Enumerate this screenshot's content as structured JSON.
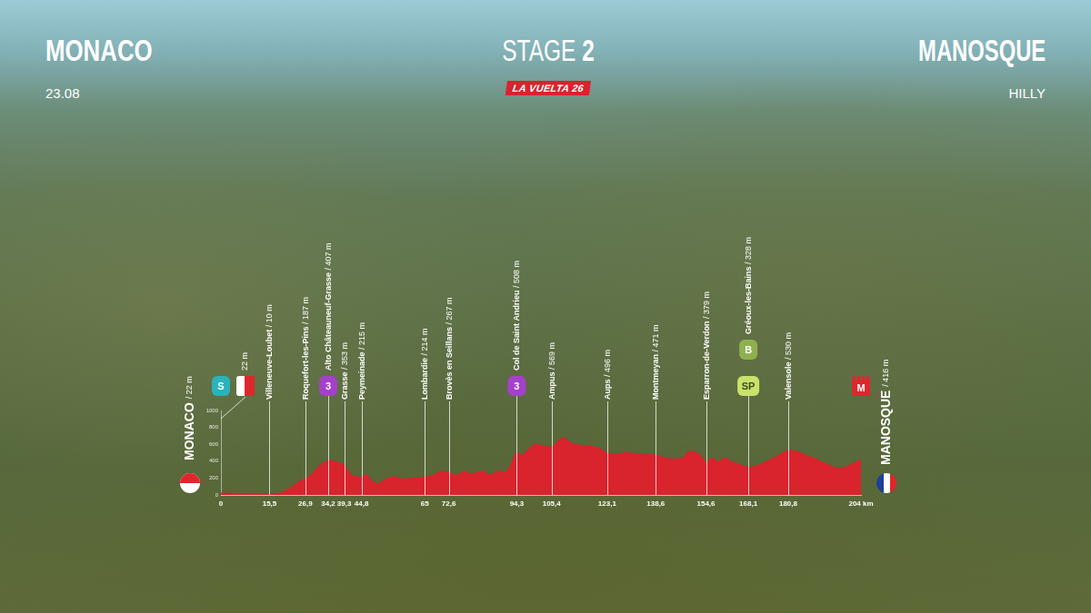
{
  "chart_data": {
    "type": "area",
    "color": "#d9232d",
    "grid": false,
    "header": {
      "left": "MONACO",
      "date": "23.08",
      "title": "STAGE 2",
      "badge": "LA VUELTA 26",
      "right": "MANOSQUE",
      "profile": "HILLY"
    },
    "start": {
      "name": "MONACO",
      "detail": "/ 22 m"
    },
    "finish": {
      "name": "MANOSQUE",
      "detail": "/ 416 m"
    },
    "start_flag": {
      "km": 0,
      "detail": "22 m"
    },
    "x": [
      0,
      3,
      6,
      10,
      15.5,
      19,
      22,
      24.5,
      26.9,
      29,
      31,
      33,
      34.2,
      36.5,
      39.3,
      41,
      42.5,
      44.8,
      46.5,
      48,
      50,
      52.5,
      55,
      58,
      61,
      63.5,
      65,
      67.5,
      70,
      72.6,
      75,
      77.5,
      80,
      83,
      86,
      88.5,
      90.5,
      92,
      94.3,
      96,
      98,
      100,
      102,
      104,
      105.4,
      107,
      109,
      111,
      113,
      116,
      119,
      121,
      123.1,
      126,
      129,
      132,
      135,
      138.6,
      141,
      144,
      147,
      149,
      151.5,
      153.5,
      154.6,
      156.5,
      158.5,
      160.5,
      162.5,
      165,
      168.1,
      171,
      174,
      177,
      180.8,
      183.5,
      186.5,
      190,
      193,
      196,
      198.5,
      201,
      204
    ],
    "values": [
      22,
      20,
      15,
      14,
      10,
      25,
      80,
      150,
      187,
      250,
      330,
      390,
      407,
      395,
      353,
      260,
      220,
      215,
      240,
      170,
      135,
      185,
      215,
      190,
      200,
      205,
      214,
      230,
      280,
      267,
      235,
      275,
      250,
      280,
      240,
      285,
      265,
      330,
      508,
      470,
      540,
      600,
      585,
      575,
      569,
      620,
      680,
      630,
      595,
      585,
      570,
      545,
      496,
      480,
      500,
      490,
      480,
      471,
      445,
      425,
      435,
      510,
      505,
      440,
      379,
      440,
      395,
      440,
      400,
      365,
      328,
      350,
      400,
      455,
      530,
      515,
      470,
      420,
      365,
      320,
      320,
      365,
      416
    ],
    "xlim": [
      0,
      204
    ],
    "xticks": [
      0,
      {
        "value": 15.5,
        "label": "15,5"
      },
      {
        "value": 26.9,
        "label": "26,9"
      },
      {
        "value": 34.2,
        "label": "34,2"
      },
      {
        "value": 39.3,
        "label": "39,3"
      },
      {
        "value": 44.8,
        "label": "44,8"
      },
      65,
      {
        "value": 72.6,
        "label": "72,6"
      },
      {
        "value": 94.3,
        "label": "94,3"
      },
      {
        "value": 105.4,
        "label": "105,4"
      },
      {
        "value": 123.1,
        "label": "123,1"
      },
      {
        "value": 138.6,
        "label": "138,6"
      },
      {
        "value": 154.6,
        "label": "154,6"
      },
      {
        "value": 168.1,
        "label": "168,1"
      },
      {
        "value": 180.8,
        "label": "180,8"
      },
      {
        "value": 204,
        "label": "204 km"
      }
    ],
    "ylim": [
      0,
      1000
    ],
    "yticks": [
      0,
      200,
      400,
      600,
      800,
      1000
    ],
    "waypoints": [
      {
        "km": 15.5,
        "name": "Villeneuve-Loubet",
        "detail": "/ 10 m"
      },
      {
        "km": 26.9,
        "name": "Roquefort-les-Pins",
        "detail": "/ 187 m"
      },
      {
        "km": 34.2,
        "name": "Alto Châteauneuf-Grasse",
        "detail": "/ 407 m"
      },
      {
        "km": 39.3,
        "name": "Grasse",
        "detail": "/ 353 m"
      },
      {
        "km": 44.8,
        "name": "Peymeinade",
        "detail": "/ 215 m"
      },
      {
        "km": 65,
        "name": "Lombardie",
        "detail": "/ 214 m"
      },
      {
        "km": 72.6,
        "name": "Brovès en Seillans",
        "detail": "/ 267 m"
      },
      {
        "km": 94.3,
        "name": "Col de Saint Andrieu",
        "detail": "/ 508 m"
      },
      {
        "km": 105.4,
        "name": "Ampus",
        "detail": "/ 569 m"
      },
      {
        "km": 123.1,
        "name": "Aups",
        "detail": "/ 496 m"
      },
      {
        "km": 138.6,
        "name": "Montmeyan",
        "detail": "/ 471 m"
      },
      {
        "km": 154.6,
        "name": "Esparron-de-Verdon",
        "detail": "/ 379 m"
      },
      {
        "km": 168.1,
        "name": "Gréoux-les-Bains",
        "detail": "/ 328 m"
      },
      {
        "km": 180.8,
        "name": "Valensole",
        "detail": "/ 530 m"
      }
    ],
    "markers": [
      {
        "km": 0,
        "label": "S",
        "color": "#2ab3bd"
      },
      {
        "km": 34.2,
        "label": "3",
        "color": "#a441c8"
      },
      {
        "km": 94.3,
        "label": "3",
        "color": "#a441c8"
      },
      {
        "km": 168.1,
        "label": "SP",
        "color": "#c9e26c"
      },
      {
        "km": 168.1,
        "label": "B",
        "color": "#8fb04e"
      },
      {
        "km": 204,
        "label": "M",
        "color": "#e0262d"
      }
    ]
  }
}
